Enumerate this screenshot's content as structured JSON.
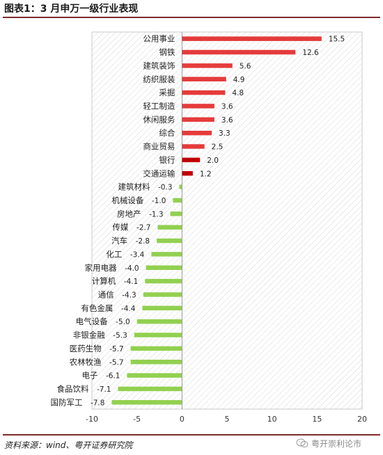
{
  "title": "图表1：3 月申万一级行业表现",
  "source": "资料来源：wind、粤开证券研究院",
  "watermark": "粤开崇利论市",
  "colors": {
    "positive": "#e53b3b",
    "positive_dark": "#c00000",
    "negative": "#92d050"
  },
  "chart_data": {
    "type": "bar",
    "orientation": "horizontal",
    "categories": [
      "公用事业",
      "钢铁",
      "建筑装饰",
      "纺织服装",
      "采掘",
      "轻工制造",
      "休闲服务",
      "综合",
      "商业贸易",
      "银行",
      "交通运输",
      "建筑材料",
      "机械设备",
      "房地产",
      "传媒",
      "汽车",
      "化工",
      "家用电器",
      "计算机",
      "通信",
      "有色金属",
      "电气设备",
      "非银金融",
      "医药生物",
      "农林牧渔",
      "电子",
      "食品饮料",
      "国防军工"
    ],
    "values": [
      15.5,
      12.6,
      5.6,
      4.9,
      4.8,
      3.6,
      3.6,
      3.3,
      2.5,
      2.0,
      1.2,
      -0.3,
      -1.0,
      -1.3,
      -2.7,
      -2.8,
      -3.4,
      -4.0,
      -4.1,
      -4.3,
      -4.4,
      -5.0,
      -5.3,
      -5.7,
      -5.7,
      -6.1,
      -7.1,
      -7.8
    ],
    "value_labels": [
      "15.5",
      "12.6",
      "5.6",
      "4.9",
      "4.8",
      "3.6",
      "3.6",
      "3.3",
      "2.5",
      "2.0",
      "1.2",
      "-0.3",
      "-1.0",
      "-1.3",
      "-2.7",
      "-2.8",
      "-3.4",
      "-4.0",
      "-4.1",
      "-4.3",
      "-4.4",
      "-5.0",
      "-5.3",
      "-5.7",
      "-5.7",
      "-6.1",
      "-7.1",
      "-7.8"
    ],
    "highlight": [
      "银行",
      "交通运输"
    ],
    "xlim": [
      -10,
      20
    ],
    "xticks": [
      -10,
      -5,
      0,
      5,
      10,
      15,
      20
    ],
    "xtick_labels": [
      "-10",
      "-5",
      "0",
      "5",
      "10",
      "15",
      "20"
    ],
    "background": "diagonal-hatch",
    "grid": false
  }
}
